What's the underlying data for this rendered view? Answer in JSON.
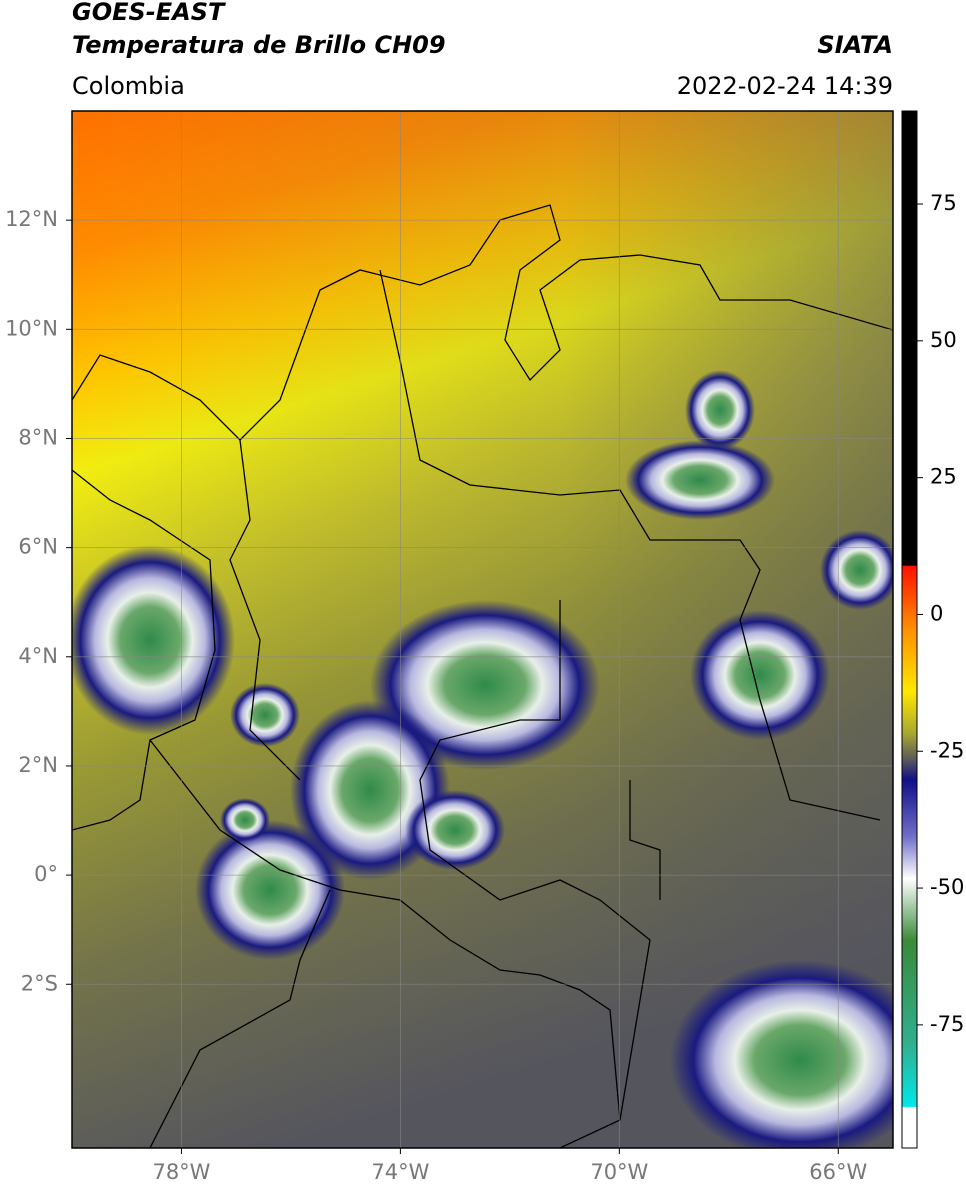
{
  "header": {
    "title_line1": "GOES-EAST",
    "title_line2": "Temperatura de Brillo CH09",
    "region": "Colombia",
    "source": "SIATA",
    "timestamp": "2022-02-24 14:39"
  },
  "map": {
    "xlim": [
      -80,
      -65
    ],
    "ylim": [
      -5,
      14
    ],
    "grid": true,
    "xticks": [
      {
        "value": -78,
        "label": "78°W"
      },
      {
        "value": -74,
        "label": "74°W"
      },
      {
        "value": -70,
        "label": "70°W"
      },
      {
        "value": -66,
        "label": "66°W"
      }
    ],
    "yticks": [
      {
        "value": 12,
        "label": "12°N"
      },
      {
        "value": 10,
        "label": "10°N"
      },
      {
        "value": 8,
        "label": "8°N"
      },
      {
        "value": 6,
        "label": "6°N"
      },
      {
        "value": 4,
        "label": "4°N"
      },
      {
        "value": 2,
        "label": "2°N"
      },
      {
        "value": 0,
        "label": "0°"
      },
      {
        "value": -2,
        "label": "2°S"
      }
    ]
  },
  "colorbar": {
    "lim": [
      -97.5,
      92
    ],
    "ticks": [
      75,
      50,
      25,
      0,
      -25,
      -50,
      -75
    ]
  }
}
